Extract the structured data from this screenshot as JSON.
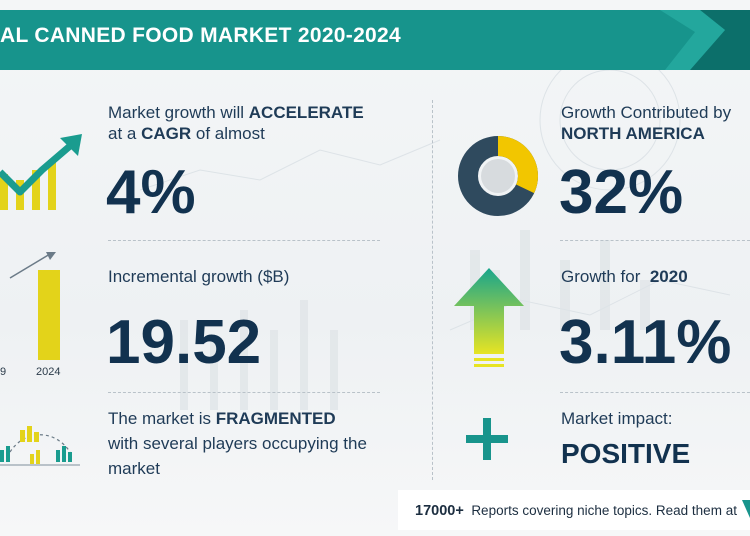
{
  "header": {
    "title": "AL CANNED FOOD MARKET 2020-2024"
  },
  "colors": {
    "teal": "#17948c",
    "teal_dark": "#0c6f6a",
    "navy": "#1f3b57",
    "yellow": "#e3d31a",
    "donut_yellow": "#f2c600",
    "donut_dark": "#2f4a5e",
    "green_arrow_top": "#18a58c",
    "green_arrow_bottom": "#e7e423",
    "plus": "#18948c"
  },
  "left": {
    "growth": {
      "line1_prefix": "Market growth will ",
      "line1_emph": "ACCELERATE",
      "line2_prefix": "at a ",
      "line2_emph": "CAGR",
      "line2_suffix": "of almost",
      "value": "4%",
      "icon": "growth-chart-icon"
    },
    "incremental": {
      "label": "Incremental growth ($B)",
      "value": "19.52",
      "year_start_partial": "9",
      "year_end": "2024",
      "icon": "bar-comparison-icon"
    },
    "fragmented": {
      "line1_prefix": "The market is ",
      "line1_emph": "FRAGMENTED",
      "line2": "with several players occupying the",
      "line3": "market",
      "icon": "market-players-icon"
    }
  },
  "right": {
    "region": {
      "line1": "Growth Contributed by",
      "line2": "NORTH AMERICA",
      "value": "32%",
      "share": 0.32,
      "icon": "donut-chart-icon"
    },
    "year_growth": {
      "label_prefix": "Growth for ",
      "label_year": "2020",
      "value": "3.11%",
      "icon": "up-arrow-icon"
    },
    "impact": {
      "label": "Market impact:",
      "value": "POSITIVE",
      "icon": "plus-icon"
    }
  },
  "footer": {
    "count": "17000+",
    "text": "Reports covering niche topics. Read them at"
  }
}
